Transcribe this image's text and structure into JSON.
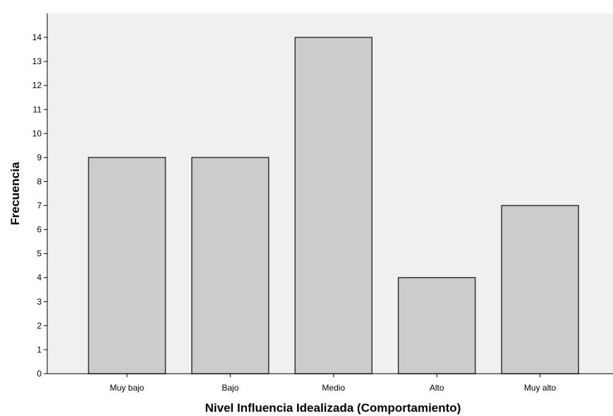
{
  "chart_data": {
    "type": "bar",
    "xlabel": "Nivel Influencia Idealizada (Comportamiento)",
    "ylabel": "Frecuencia",
    "categories": [
      "Muy bajo",
      "Bajo",
      "Medio",
      "Alto",
      "Muy alto"
    ],
    "values": [
      9,
      9,
      14,
      4,
      7
    ],
    "ylim": [
      0,
      15
    ],
    "yticks": [
      "0",
      "1",
      "2",
      "3",
      "4",
      "5",
      "6",
      "7",
      "8",
      "9",
      "10",
      "11",
      "12",
      "13",
      "14"
    ],
    "grid": false,
    "colors": {
      "plot_background": "#f0f0f0",
      "bar_fill": "#cccccc",
      "bar_stroke": "#333333",
      "axis": "#000000"
    }
  }
}
